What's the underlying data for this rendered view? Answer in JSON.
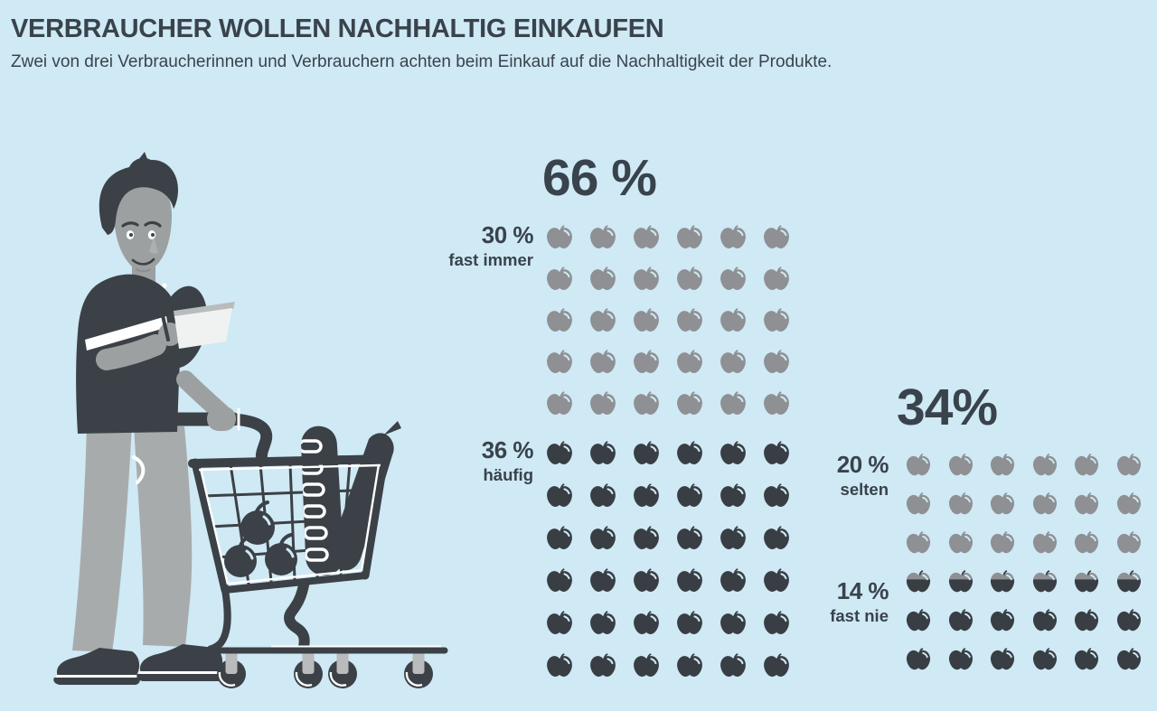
{
  "page": {
    "title": "VERBRAUCHER WOLLEN NACHHALTIG EINKAUFEN",
    "subtitle": "Zwei von drei Verbraucherinnen und Verbrauchern achten beim Einkauf auf die Nachhaltigkeit der Produkte."
  },
  "colors": {
    "background": "#cfe9f5",
    "text": "#39434c",
    "ink": "#3b4146",
    "apple_gray": "#8e9093",
    "apple_dark": "#383e43",
    "skin": "#9da0a1",
    "pants": "#a8abac",
    "paper": "#f0f2f2",
    "wheel_fork": "#b9bbbc"
  },
  "chart_data": {
    "type": "pictogram",
    "icon": "apple",
    "unit": "1 Apfel = 1 Prozentpunkt",
    "groups": [
      {
        "name": "achten-auf-nachhaltigkeit",
        "total_label": "66 %",
        "total_value": 66,
        "columns": 6,
        "segments": [
          {
            "pct_label": "30 %",
            "label": "fast immer",
            "value": 30,
            "color": "gray",
            "full_rows": 5
          },
          {
            "pct_label": "36 %",
            "label": "häufig",
            "value": 36,
            "color": "dark",
            "full_rows": 6
          }
        ]
      },
      {
        "name": "achten-nicht-auf-nachhaltigkeit",
        "total_label": "34%",
        "total_value": 34,
        "columns": 6,
        "segments": [
          {
            "pct_label": "20 %",
            "label": "selten",
            "value": 20,
            "color": "gray",
            "full_rows": 3
          },
          {
            "pct_label": "14 %",
            "label": "fast nie",
            "value": 14,
            "color": "dark",
            "full_rows": 2
          }
        ],
        "split_row": {
          "apples": 6,
          "top_color": "gray",
          "bottom_color": "dark",
          "top_fraction": 0.41
        }
      }
    ]
  }
}
